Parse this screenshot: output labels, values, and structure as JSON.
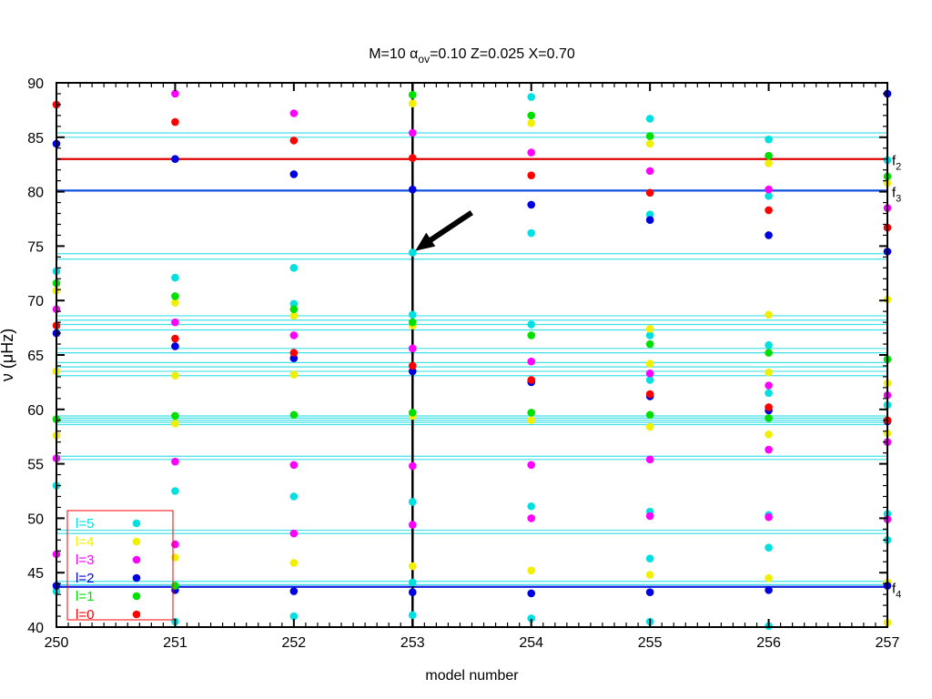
{
  "chart_data": {
    "type": "scatter",
    "title": {
      "prefix": "M=10  ",
      "alpha_symbol": "α",
      "alpha_sub": "ov",
      "rest": "=0.10  Z=0.025   X=0.70"
    },
    "xlabel": "model number",
    "ylabel": {
      "nu": "ν",
      "unit": " (μHz)"
    },
    "xlim": [
      250,
      257
    ],
    "ylim": [
      40,
      90
    ],
    "x_ticks": [
      250,
      251,
      252,
      253,
      254,
      255,
      256,
      257
    ],
    "y_ticks": [
      40,
      45,
      50,
      55,
      60,
      65,
      70,
      75,
      80,
      85,
      90
    ],
    "grid": false,
    "legend_placement": "bottom-left",
    "series": [
      {
        "name": "l=5",
        "color": "#00e0e0",
        "points": [
          [
            250,
            72.7
          ],
          [
            250,
            53.0
          ],
          [
            250,
            43.3
          ],
          [
            251,
            72.1
          ],
          [
            251,
            52.5
          ],
          [
            251,
            40.5
          ],
          [
            252,
            73.0
          ],
          [
            252,
            69.7
          ],
          [
            252,
            52.0
          ],
          [
            252,
            41.0
          ],
          [
            253,
            74.4
          ],
          [
            253,
            68.7
          ],
          [
            253,
            51.5
          ],
          [
            253,
            44.1
          ],
          [
            253,
            41.1
          ],
          [
            254,
            88.7
          ],
          [
            254,
            76.2
          ],
          [
            254,
            67.8
          ],
          [
            254,
            51.1
          ],
          [
            254,
            40.8
          ],
          [
            255,
            86.7
          ],
          [
            255,
            77.9
          ],
          [
            255,
            66.8
          ],
          [
            255,
            62.7
          ],
          [
            255,
            50.6
          ],
          [
            255,
            46.3
          ],
          [
            255,
            40.5
          ],
          [
            256,
            84.8
          ],
          [
            256,
            79.6
          ],
          [
            256,
            65.9
          ],
          [
            256,
            61.5
          ],
          [
            256,
            50.3
          ],
          [
            256,
            47.3
          ],
          [
            256,
            40.1
          ],
          [
            257,
            82.9
          ],
          [
            257,
            60.4
          ],
          [
            257,
            50.4
          ],
          [
            257,
            48.0
          ]
        ]
      },
      {
        "name": "l=4",
        "color": "#f0f000",
        "points": [
          [
            250,
            70.9
          ],
          [
            250,
            63.5
          ],
          [
            250,
            57.6
          ],
          [
            251,
            69.8
          ],
          [
            251,
            63.1
          ],
          [
            251,
            58.7
          ],
          [
            251,
            46.4
          ],
          [
            252,
            68.6
          ],
          [
            252,
            63.2
          ],
          [
            252,
            45.9
          ],
          [
            253,
            88.1
          ],
          [
            253,
            67.7
          ],
          [
            253,
            59.4
          ],
          [
            253,
            45.6
          ],
          [
            254,
            86.3
          ],
          [
            254,
            59.0
          ],
          [
            254,
            45.2
          ],
          [
            255,
            84.4
          ],
          [
            255,
            67.4
          ],
          [
            255,
            64.2
          ],
          [
            255,
            58.4
          ],
          [
            255,
            44.8
          ],
          [
            256,
            82.6
          ],
          [
            256,
            68.7
          ],
          [
            256,
            63.4
          ],
          [
            256,
            57.7
          ],
          [
            256,
            44.5
          ],
          [
            257,
            80.8
          ],
          [
            257,
            70.1
          ],
          [
            257,
            62.4
          ],
          [
            257,
            57.8
          ],
          [
            257,
            44.1
          ],
          [
            257,
            40.4
          ]
        ]
      },
      {
        "name": "l=3",
        "color": "#ff00ff",
        "points": [
          [
            250,
            69.2
          ],
          [
            250,
            55.5
          ],
          [
            250,
            46.7
          ],
          [
            251,
            89.0
          ],
          [
            251,
            68.0
          ],
          [
            251,
            55.2
          ],
          [
            251,
            47.6
          ],
          [
            252,
            87.2
          ],
          [
            252,
            66.8
          ],
          [
            252,
            54.9
          ],
          [
            252,
            48.6
          ],
          [
            253,
            85.4
          ],
          [
            253,
            65.6
          ],
          [
            253,
            54.8
          ],
          [
            253,
            49.4
          ],
          [
            254,
            83.6
          ],
          [
            254,
            64.4
          ],
          [
            254,
            54.9
          ],
          [
            254,
            50.0
          ],
          [
            255,
            81.9
          ],
          [
            255,
            63.3
          ],
          [
            255,
            55.4
          ],
          [
            255,
            50.2
          ],
          [
            256,
            80.2
          ],
          [
            256,
            62.2
          ],
          [
            256,
            56.3
          ],
          [
            256,
            50.1
          ],
          [
            257,
            78.5
          ],
          [
            257,
            61.3
          ],
          [
            257,
            57.0
          ],
          [
            257,
            49.9
          ]
        ]
      },
      {
        "name": "l=2",
        "color": "#0000e0",
        "points": [
          [
            250,
            84.4
          ],
          [
            250,
            67.0
          ],
          [
            250,
            43.8
          ],
          [
            251,
            83.0
          ],
          [
            251,
            65.8
          ],
          [
            251,
            43.4
          ],
          [
            252,
            81.6
          ],
          [
            252,
            64.7
          ],
          [
            252,
            43.3
          ],
          [
            253,
            80.2
          ],
          [
            253,
            63.5
          ],
          [
            253,
            43.2
          ],
          [
            254,
            78.8
          ],
          [
            254,
            62.5
          ],
          [
            254,
            43.1
          ],
          [
            255,
            77.4
          ],
          [
            255,
            61.2
          ],
          [
            255,
            43.2
          ],
          [
            256,
            76.0
          ],
          [
            256,
            59.9
          ],
          [
            256,
            43.4
          ],
          [
            257,
            89.0
          ],
          [
            257,
            74.5
          ],
          [
            257,
            58.9
          ],
          [
            257,
            43.8
          ]
        ]
      },
      {
        "name": "l=1",
        "color": "#00e000",
        "points": [
          [
            250,
            71.6
          ],
          [
            250,
            59.1
          ],
          [
            251,
            70.4
          ],
          [
            251,
            59.4
          ],
          [
            251,
            43.8
          ],
          [
            252,
            69.2
          ],
          [
            252,
            59.5
          ],
          [
            253,
            88.9
          ],
          [
            253,
            68.0
          ],
          [
            253,
            59.7
          ],
          [
            254,
            87.0
          ],
          [
            254,
            66.8
          ],
          [
            254,
            59.7
          ],
          [
            255,
            85.1
          ],
          [
            255,
            66.0
          ],
          [
            255,
            59.5
          ],
          [
            256,
            83.3
          ],
          [
            256,
            65.2
          ],
          [
            256,
            59.2
          ],
          [
            257,
            81.4
          ],
          [
            257,
            64.6
          ],
          [
            257,
            59.0
          ]
        ]
      },
      {
        "name": "l=0",
        "color": "#ff0000",
        "points": [
          [
            250,
            88.0
          ],
          [
            250,
            67.7
          ],
          [
            251,
            86.4
          ],
          [
            251,
            66.5
          ],
          [
            252,
            84.7
          ],
          [
            252,
            65.2
          ],
          [
            253,
            83.1
          ],
          [
            253,
            64.0
          ],
          [
            254,
            81.5
          ],
          [
            254,
            62.7
          ],
          [
            255,
            79.9
          ],
          [
            255,
            61.4
          ],
          [
            256,
            78.3
          ],
          [
            256,
            60.2
          ],
          [
            257,
            76.7
          ],
          [
            257,
            59.0
          ]
        ]
      }
    ],
    "observed_lines": {
      "color": "#40e0e8",
      "values": [
        85.4,
        85.0,
        74.3,
        73.8,
        68.6,
        68.2,
        67.8,
        67.3,
        65.6,
        65.2,
        64.3,
        63.9,
        63.5,
        63.1,
        59.4,
        59.2,
        59.0,
        58.8,
        58.6,
        55.7,
        55.4,
        48.9,
        48.6,
        44.2,
        43.9
      ]
    },
    "highlighted_lines": [
      {
        "value": 83.0,
        "color": "#e00000",
        "label": "f",
        "label_sub": "2"
      },
      {
        "value": 80.1,
        "color": "#1050e0",
        "label": "f",
        "label_sub": "3"
      },
      {
        "value": 43.7,
        "color": "#1020e0",
        "label": "f",
        "label_sub": "4"
      }
    ],
    "selected_model": 253,
    "arrow_target": [
      253,
      74.4
    ]
  }
}
